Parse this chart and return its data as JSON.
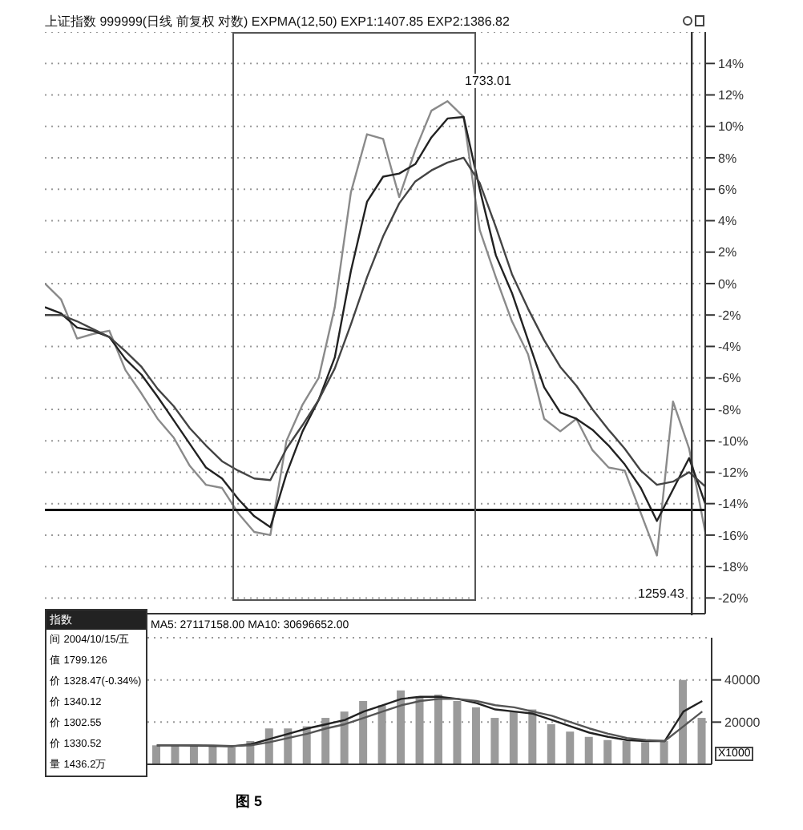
{
  "chart_data": [
    {
      "type": "line",
      "title": "上证指数 999999(日线 前复权 对数) EXPMA(12,50) EXP1:1407.85 EXP2:1386.82",
      "categories": [
        null,
        null,
        null,
        null,
        null,
        null,
        null,
        null,
        null,
        null,
        null,
        null,
        null,
        null,
        null,
        null,
        null,
        null,
        null,
        null,
        null,
        null,
        null,
        null,
        null,
        null,
        null,
        null,
        null,
        null,
        null,
        null,
        null,
        null,
        null,
        null,
        null,
        null,
        null,
        null,
        null,
        null
      ],
      "series": [
        {
          "color": "#8a8a8a",
          "values": [
            0,
            -1,
            -3.5,
            -3.2,
            -3,
            -5.5,
            -7,
            -8.6,
            -9.8,
            -11.6,
            -12.8,
            -13,
            -14.6,
            -15.8,
            -16,
            -10,
            -7.7,
            -6,
            -1.5,
            5.8,
            9.5,
            9.2,
            5.5,
            8.5,
            11,
            11.6,
            10.6,
            3.4,
            0.4,
            -2.4,
            -4.5,
            -8.6,
            -9.4,
            -8.6,
            -10.6,
            -11.7,
            -11.9,
            -14.6,
            -17.3,
            -7.5,
            -10.5,
            -15.8
          ]
        },
        {
          "color": "#222222",
          "values": [
            -1.5,
            -1.9,
            -2.8,
            -3,
            -3.4,
            -4.8,
            -5.8,
            -7.2,
            -8.7,
            -10.2,
            -11.7,
            -12.4,
            -13.7,
            -14.8,
            -15.5,
            -12.1,
            -9.4,
            -7.4,
            -4.7,
            0.8,
            5.2,
            6.8,
            7,
            7.6,
            9.3,
            10.5,
            10.6,
            6,
            1.8,
            -0.6,
            -3.6,
            -6.6,
            -8.2,
            -8.6,
            -9.3,
            -10.3,
            -11.5,
            -13,
            -15.1,
            -13.1,
            -11.1,
            -14
          ]
        },
        {
          "color": "#444444",
          "values": [
            -2,
            -2,
            -2.4,
            -2.9,
            -3.4,
            -4.3,
            -5.3,
            -6.7,
            -7.8,
            -9.2,
            -10.3,
            -11.3,
            -11.9,
            -12.4,
            -12.5,
            -10.5,
            -9,
            -7.4,
            -5.4,
            -2.6,
            0.4,
            3,
            5.1,
            6.5,
            7.2,
            7.7,
            8,
            6.4,
            3.6,
            0.6,
            -1.6,
            -3.6,
            -5.3,
            -6.5,
            -8,
            -9.3,
            -10.5,
            -11.9,
            -12.8,
            -12.6,
            -12,
            -12.9
          ]
        }
      ],
      "ylim": [
        -21,
        16
      ],
      "yticks": [
        {
          "value": 14,
          "label": "14%"
        },
        {
          "value": 12,
          "label": "12%"
        },
        {
          "value": 10,
          "label": "10%"
        },
        {
          "value": 8,
          "label": "8%"
        },
        {
          "value": 6,
          "label": "6%"
        },
        {
          "value": 4,
          "label": "4%"
        },
        {
          "value": 2,
          "label": "2%"
        },
        {
          "value": 0,
          "label": "0%"
        },
        {
          "value": -2,
          "label": "-2%"
        },
        {
          "value": -4,
          "label": "-4%"
        },
        {
          "value": -6,
          "label": "-6%"
        },
        {
          "value": -8,
          "label": "-8%"
        },
        {
          "value": -10,
          "label": "-10%"
        },
        {
          "value": -12,
          "label": "-12%"
        },
        {
          "value": -14,
          "label": "-14%"
        },
        {
          "value": -16,
          "label": "-16%"
        },
        {
          "value": -18,
          "label": "-18%"
        },
        {
          "value": -20,
          "label": "-20%"
        }
      ],
      "tick_labels": "y",
      "grid": "y",
      "line_style": "solid",
      "marker": "none",
      "ref_lines": [
        {
          "axis": "y",
          "value": -14.4,
          "color": "#111111"
        }
      ],
      "annotations": [
        "1733.01",
        "1259.43"
      ]
    },
    {
      "type": "other",
      "title": "指数",
      "annotations": [
        "间 2004/10/15/五",
        "值 1799.126",
        "价 1328.47(-0.34%)",
        "价 1340.12",
        "价 1302.55",
        "价 1330.52",
        "量 1436.2万"
      ]
    },
    {
      "type": "bar",
      "title": "MA5: 27117158.00 MA10: 30696652.00",
      "ylabel": "X1000",
      "categories": [
        null,
        null,
        null,
        null,
        null,
        null,
        null,
        null,
        null,
        null,
        null,
        null,
        null,
        null,
        null,
        null,
        null,
        null,
        null,
        null,
        null,
        null,
        null,
        null,
        null,
        null,
        null,
        null,
        null,
        null
      ],
      "series": [
        {
          "color": "#9a9a9a",
          "values": [
            9000,
            9000,
            8800,
            8500,
            8000,
            11000,
            17000,
            17000,
            18000,
            22000,
            25000,
            30000,
            28000,
            35000,
            32000,
            33000,
            30000,
            27000,
            22000,
            25000,
            26000,
            19000,
            15500,
            13000,
            11500,
            11000,
            10500,
            11000,
            40000,
            22000
          ]
        },
        {
          "type": "line",
          "color": "#222222",
          "values": [
            9000,
            9000,
            8900,
            8700,
            8500,
            9500,
            12000,
            14500,
            17000,
            19000,
            21000,
            25000,
            28000,
            31000,
            32000,
            32000,
            31000,
            29000,
            26000,
            25000,
            24000,
            21000,
            18000,
            15000,
            13000,
            11500,
            11000,
            11000,
            25000,
            30000
          ]
        },
        {
          "type": "line",
          "color": "#555555",
          "values": [
            9000,
            9000,
            9000,
            8900,
            8700,
            9000,
            10500,
            12500,
            14500,
            17000,
            19000,
            22000,
            25000,
            28000,
            30000,
            31000,
            31000,
            30000,
            28000,
            27000,
            25000,
            23000,
            20000,
            17000,
            14500,
            12500,
            11500,
            11000,
            18000,
            25000
          ]
        }
      ],
      "ylim": [
        0,
        60000
      ],
      "yticks": [
        20000,
        40000
      ],
      "tick_labels": "y",
      "grid": "y",
      "annotations": [
        "图 5"
      ]
    }
  ]
}
